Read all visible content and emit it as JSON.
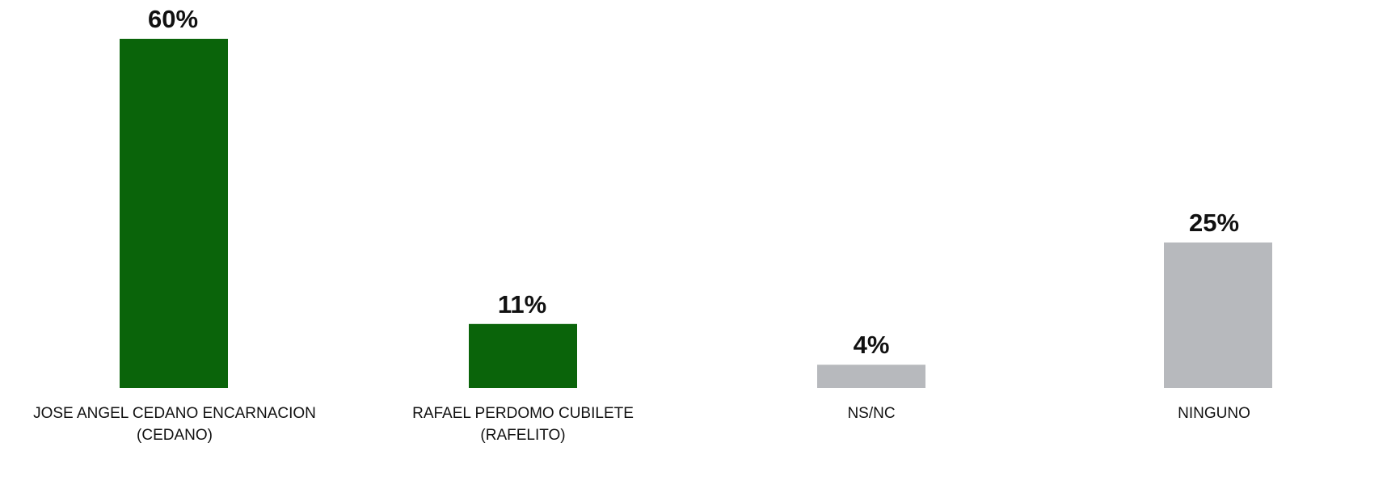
{
  "chart_data": {
    "type": "bar",
    "categories": [
      [
        "JOSE ANGEL CEDANO ENCARNACION",
        "(CEDANO)"
      ],
      [
        "RAFAEL PERDOMO CUBILETE",
        "(RAFELITO)"
      ],
      [
        "NS/NC"
      ],
      [
        "NINGUNO"
      ]
    ],
    "values": [
      60,
      11,
      4,
      25
    ],
    "value_labels": [
      "60%",
      "11%",
      "4%",
      "25%"
    ],
    "bar_colors": [
      "#0a640a",
      "#0a640a",
      "#b7b9bd",
      "#b7b9bd"
    ],
    "ylim": [
      0,
      60
    ],
    "grid": false,
    "title": "",
    "xlabel": "",
    "ylabel": ""
  }
}
